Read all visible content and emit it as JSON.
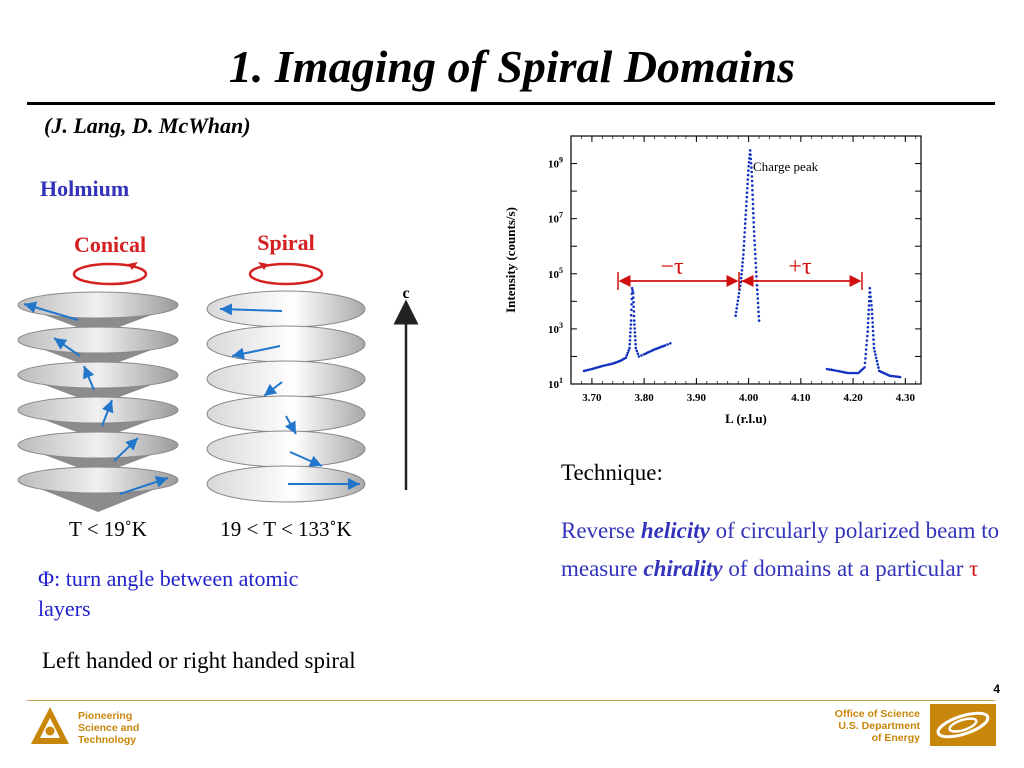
{
  "slide": {
    "title": "1. Imaging of Spiral Domains",
    "authors": "(J. Lang, D. McWhan)",
    "element": "Holmium",
    "phases": {
      "conical_label": "Conical",
      "spiral_label": "Spiral",
      "axis_label": "c",
      "conical_temp": "T < 19˚K",
      "spiral_temp": "19 < T < 133˚K"
    },
    "phi_symbol": "Φ",
    "phi_text": ": turn angle between atomic layers",
    "handed": "Left handed or right handed spiral",
    "technique_head": "Technique:",
    "technique": {
      "p1": "Reverse ",
      "em1": "helicity",
      "p2": " of circularly polarized beam to measure ",
      "em2": "chirality",
      "p3": " of domains at a particular ",
      "tau": "τ"
    },
    "page_number": "4",
    "footer_left": [
      "Pioneering",
      "Science and",
      "Technology"
    ],
    "footer_right": [
      "Office of Science",
      "U.S. Department",
      "of Energy"
    ],
    "colors": {
      "accent": "#3333bb",
      "red": "#d01010",
      "gold": "#c8860a",
      "data": "#1030c0"
    }
  },
  "chart_data": {
    "type": "scatter",
    "xlabel": "L  (r.l.u)",
    "ylabel": "Intensity (counts/s)",
    "xlim": [
      3.66,
      4.33
    ],
    "ylim": [
      10,
      10000000000
    ],
    "yscale": "log",
    "x_ticks": [
      "3.70",
      "3.80",
      "3.90",
      "4.00",
      "4.10",
      "4.20",
      "4.30"
    ],
    "y_ticks": [
      {
        "base": "10",
        "exp": "1"
      },
      {
        "base": "10",
        "exp": "3"
      },
      {
        "base": "10",
        "exp": "5"
      },
      {
        "base": "10",
        "exp": "7"
      },
      {
        "base": "10",
        "exp": "9"
      }
    ],
    "annotations": {
      "charge_peak": "Charge peak",
      "minus_tau": "−τ",
      "plus_tau": "+τ"
    },
    "series": [
      {
        "segments": [
          [
            [
              3.685,
              30
            ],
            [
              3.7,
              35
            ],
            [
              3.72,
              45
            ],
            [
              3.74,
              55
            ],
            [
              3.755,
              70
            ],
            [
              3.765,
              90
            ],
            [
              3.772,
              200
            ],
            [
              3.775,
              2000
            ],
            [
              3.777,
              30000
            ],
            [
              3.779,
              20000
            ],
            [
              3.781,
              2000
            ],
            [
              3.784,
              200
            ],
            [
              3.79,
              100
            ],
            [
              3.8,
              120
            ],
            [
              3.82,
              180
            ],
            [
              3.84,
              250
            ],
            [
              3.85,
              300
            ]
          ],
          [
            [
              3.975,
              3000
            ],
            [
              3.985,
              50000
            ],
            [
              3.99,
              500000
            ],
            [
              3.995,
              20000000
            ],
            [
              4.0,
              800000000
            ],
            [
              4.003,
              3000000000
            ],
            [
              4.006,
              500000000
            ],
            [
              4.01,
              5000000
            ],
            [
              4.015,
              80000
            ],
            [
              4.02,
              2000
            ]
          ],
          [
            [
              4.15,
              35
            ],
            [
              4.17,
              30
            ],
            [
              4.19,
              25
            ],
            [
              4.21,
              25
            ],
            [
              4.222,
              40
            ],
            [
              4.228,
              800
            ],
            [
              4.232,
              30000
            ],
            [
              4.236,
              5000
            ],
            [
              4.24,
              200
            ],
            [
              4.25,
              30
            ],
            [
              4.27,
              20
            ],
            [
              4.29,
              18
            ]
          ]
        ]
      }
    ]
  }
}
